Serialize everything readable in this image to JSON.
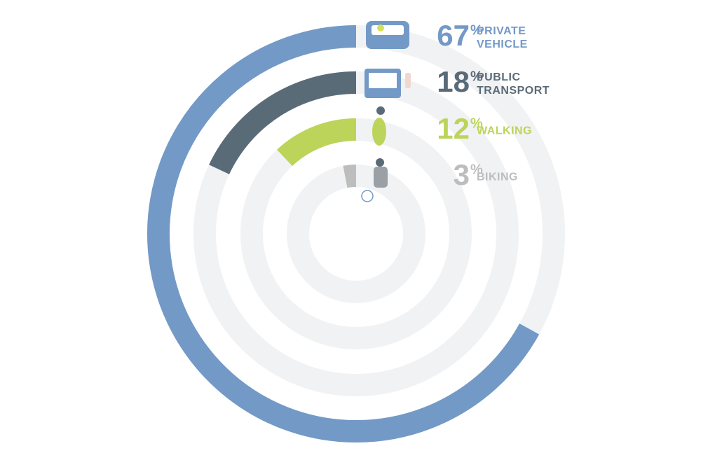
{
  "chart_data": {
    "type": "radial-bar",
    "categories": [
      "PRIVATE VEHICLE",
      "PUBLIC TRANSPORT",
      "WALKING",
      "BIKING"
    ],
    "values": [
      67,
      18,
      12,
      3
    ],
    "unit": "%",
    "colors": [
      "#7399c6",
      "#5a6b78",
      "#bcd45a",
      "#bdbdbd"
    ],
    "track_color": "#f1f2f4"
  }
}
